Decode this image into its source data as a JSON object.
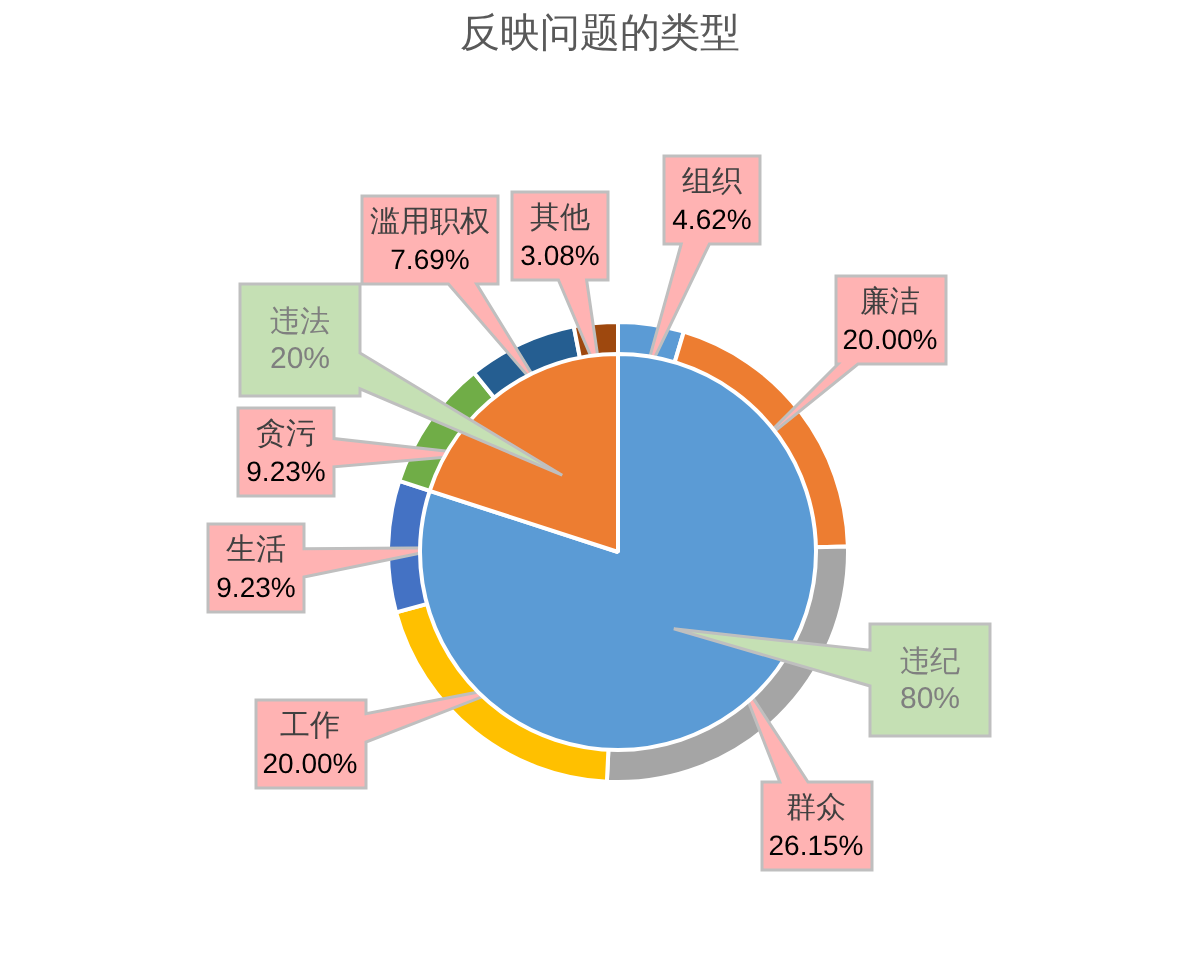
{
  "chart_data": [
    {
      "type": "pie",
      "title": "反映问题的类型",
      "categories": [
        "违纪",
        "违法"
      ],
      "values": [
        80,
        20
      ],
      "colors": [
        "#5b9bd5",
        "#ed7d31"
      ],
      "value_labels": [
        "80%",
        "20%"
      ]
    },
    {
      "type": "donut",
      "categories": [
        "组织",
        "廉洁",
        "群众",
        "工作",
        "生活",
        "贪污",
        "滥用职权",
        "其他"
      ],
      "values": [
        4.62,
        20.0,
        26.15,
        20.0,
        9.23,
        9.23,
        7.69,
        3.08
      ],
      "colors": [
        "#5b9bd5",
        "#ed7d31",
        "#a5a5a5",
        "#ffc000",
        "#4472c4",
        "#70ad47",
        "#255e91",
        "#9e480e"
      ],
      "value_labels": [
        "4.62%",
        "20.00%",
        "26.15%",
        "20.00%",
        "9.23%",
        "9.23%",
        "7.69%",
        "3.08%"
      ]
    }
  ]
}
